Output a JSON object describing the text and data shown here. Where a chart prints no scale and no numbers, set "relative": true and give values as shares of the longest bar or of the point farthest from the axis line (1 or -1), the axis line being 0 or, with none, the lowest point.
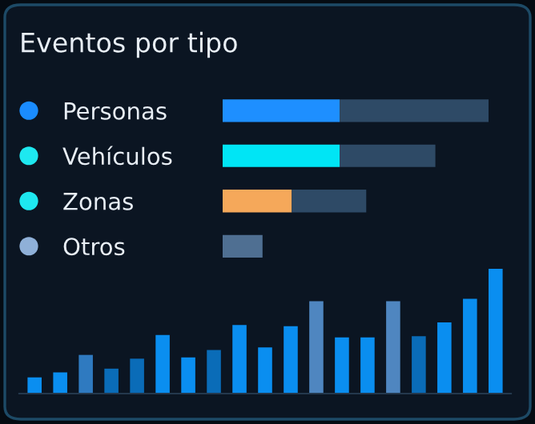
{
  "chart_data": [
    {
      "type": "bar",
      "title": "Eventos por tipo",
      "orientation": "horizontal",
      "stacked": true,
      "relative": true,
      "categories": [
        "Personas",
        "Vehículos",
        "Zonas",
        "Otros"
      ],
      "series": [
        {
          "colors": [
            "#1e8fff",
            "#00e5f5",
            "#f5a85a",
            "#4f6f92"
          ],
          "values": [
            0.44,
            0.44,
            0.26,
            0.15
          ]
        },
        {
          "color": "#2e4a66",
          "values": [
            0.56,
            0.36,
            0.28,
            null
          ]
        }
      ]
    },
    {
      "type": "bar",
      "relative": true,
      "categories": [
        null,
        null,
        null,
        null,
        null,
        null,
        null,
        null,
        null,
        null,
        null,
        null,
        null,
        null,
        null,
        null,
        null,
        null,
        null
      ],
      "values": [
        0.13,
        0.17,
        0.31,
        0.2,
        0.28,
        0.47,
        0.29,
        0.35,
        0.55,
        0.37,
        0.54,
        0.74,
        0.45,
        0.45,
        0.74,
        0.46,
        0.57,
        0.76,
        1.0
      ],
      "colors": [
        "#0a8ef0",
        "#0a8ef0",
        "#2f7ac0",
        "#0a6cb8",
        "#0a6cb8",
        "#0a8ef0",
        "#0a8ef0",
        "#0a6cb8",
        "#0a8ef0",
        "#0a8ef0",
        "#0a8ef0",
        "#4f86c0",
        "#0a8ef0",
        "#0a8ef0",
        "#4f86c0",
        "#0a6cb8",
        "#0a8ef0",
        "#0a8ef0",
        "#0a8ef0"
      ]
    }
  ]
}
